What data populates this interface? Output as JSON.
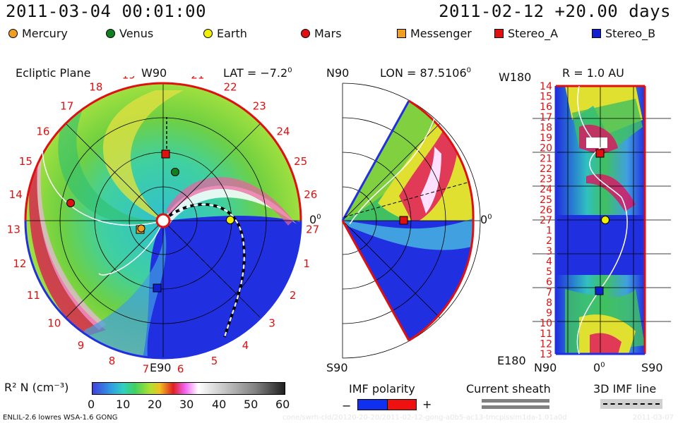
{
  "header": {
    "current_time": "2011-03-04 00:01:00",
    "run_start": "2011-02-12 +20.00 days"
  },
  "legend": [
    {
      "label": "Mercury",
      "shape": "circle",
      "color": "#f0a020"
    },
    {
      "label": "Venus",
      "shape": "circle",
      "color": "#108020"
    },
    {
      "label": "Earth",
      "shape": "circle",
      "color": "#f0f000"
    },
    {
      "label": "Mars",
      "shape": "circle",
      "color": "#e01010"
    },
    {
      "label": "Messenger",
      "shape": "square",
      "color": "#f0a020"
    },
    {
      "label": "Stereo_A",
      "shape": "square",
      "color": "#e01010"
    },
    {
      "label": "Stereo_B",
      "shape": "square",
      "color": "#1020d0"
    }
  ],
  "ecliptic_panel": {
    "title": "Ecliptic Plane",
    "top_label": "W90",
    "bottom_label": "E90",
    "right_label": "0",
    "lat_label": "LAT = −7.2",
    "degree_mark": "0",
    "carrington_ticks": [
      "20",
      "21",
      "22",
      "23",
      "24",
      "25",
      "26",
      "27",
      "1",
      "2",
      "3",
      "4",
      "5",
      "6",
      "7",
      "8",
      "9",
      "10",
      "11",
      "12",
      "13",
      "14",
      "15",
      "16",
      "17",
      "18",
      "19"
    ]
  },
  "meridional_panel": {
    "top_label": "N90",
    "bottom_label": "S90",
    "right_label": "0",
    "lon_label": "LON = 87.5106",
    "degree_mark": "0"
  },
  "lat_lon_panel": {
    "r_label": "R = 1.0 AU",
    "top_left_label": "W180",
    "bottom_left_label": "E180",
    "x_labels": [
      "N90",
      "0",
      "S90"
    ],
    "degree_mark": "0",
    "y_ticks": [
      "14",
      "15",
      "16",
      "17",
      "18",
      "19",
      "20",
      "21",
      "22",
      "23",
      "24",
      "25",
      "26",
      "27",
      "1",
      "2",
      "3",
      "4",
      "5",
      "6",
      "7",
      "8",
      "9",
      "10",
      "11",
      "12",
      "13"
    ]
  },
  "colorbar": {
    "label": "R² N (cm⁻³)",
    "ticks": [
      "0",
      "10",
      "20",
      "30",
      "40",
      "50",
      "60"
    ]
  },
  "imf_polarity": {
    "title": "IMF polarity",
    "minus": "−",
    "plus": "+"
  },
  "current_sheath": {
    "title": "Current sheath"
  },
  "imf_line": {
    "title": "3D IMF line"
  },
  "footer": {
    "model": "ENLIL-2.6 lowres WSA-1.6 GONG",
    "path": "cone/swrh-cld/20120-20-20/2011-02-12-gong-a0b5-ac13-tmcpissim1da-1.01a0d",
    "date": "2011-03-07"
  }
}
